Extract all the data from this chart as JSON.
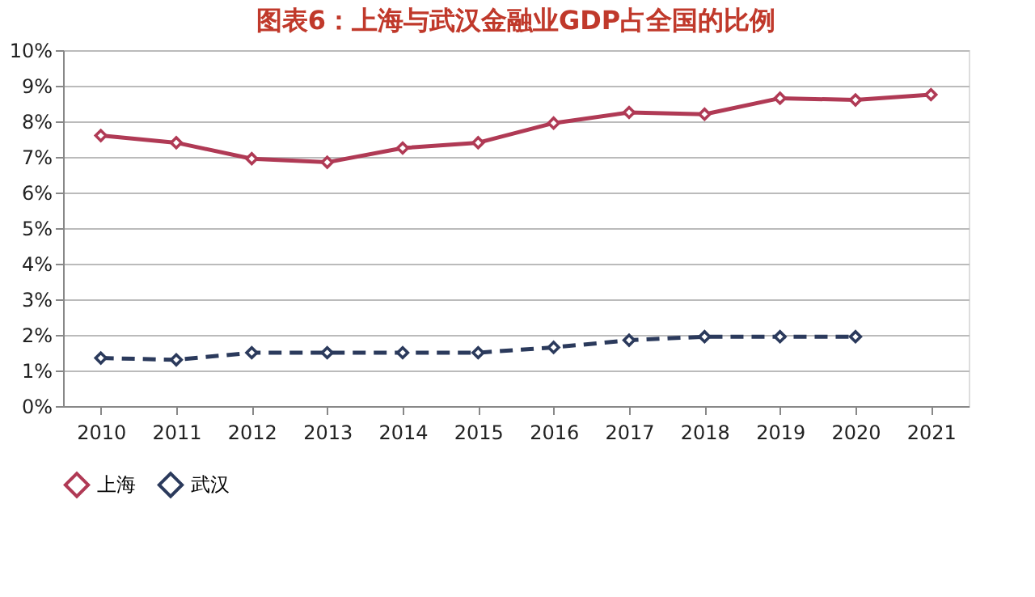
{
  "chart_data": {
    "type": "line",
    "title": "图表6：上海与武汉金融业GDP占全国的比例",
    "categories": [
      "2010",
      "2011",
      "2012",
      "2013",
      "2014",
      "2015",
      "2016",
      "2017",
      "2018",
      "2019",
      "2020",
      "2021"
    ],
    "series": [
      {
        "name": "上海",
        "color": "#b03a55",
        "line_style": "solid",
        "values": [
          7.6,
          7.4,
          6.95,
          6.85,
          7.25,
          7.4,
          7.95,
          8.25,
          8.2,
          8.65,
          8.6,
          8.75
        ]
      },
      {
        "name": "武汉",
        "color": "#2b3a5c",
        "line_style": "dashed",
        "values": [
          1.35,
          1.3,
          1.5,
          1.5,
          1.5,
          1.5,
          1.65,
          1.85,
          1.95,
          1.95,
          1.95,
          null
        ]
      }
    ],
    "ylim": [
      0,
      10
    ],
    "yticks": [
      {
        "value": 0,
        "label": "0%"
      },
      {
        "value": 1,
        "label": "1%"
      },
      {
        "value": 2,
        "label": "2%"
      },
      {
        "value": 3,
        "label": "3%"
      },
      {
        "value": 4,
        "label": "4%"
      },
      {
        "value": 5,
        "label": "5%"
      },
      {
        "value": 6,
        "label": "6%"
      },
      {
        "value": 7,
        "label": "7%"
      },
      {
        "value": 8,
        "label": "8%"
      },
      {
        "value": 9,
        "label": "9%"
      },
      {
        "value": 10,
        "label": "10%"
      }
    ],
    "grid": "y",
    "legend": "bottom",
    "marker": "diamond"
  }
}
